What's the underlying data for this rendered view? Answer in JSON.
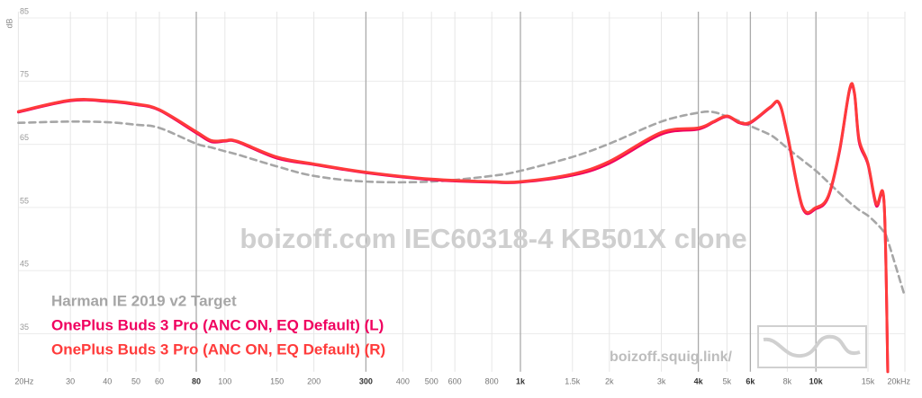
{
  "chart_data": {
    "type": "line",
    "watermark": "boizoff.com IEC60318-4 KB501X clone",
    "site": "boizoff.squig.link/",
    "y_label": "dB",
    "xscale": "log",
    "grid": true,
    "xlim": [
      20,
      20000
    ],
    "ylim": [
      29,
      86
    ],
    "yticks": [
      35,
      45,
      55,
      65,
      75,
      85
    ],
    "xticks": [
      {
        "value": 20,
        "label": "20Hz"
      },
      30,
      40,
      50,
      60,
      80,
      100,
      150,
      200,
      300,
      400,
      500,
      600,
      800,
      {
        "value": 1000,
        "label": "1k"
      },
      {
        "value": 1500,
        "label": "1.5k"
      },
      {
        "value": 2000,
        "label": "2k"
      },
      {
        "value": 3000,
        "label": "3k"
      },
      {
        "value": 4000,
        "label": "4k"
      },
      {
        "value": 5000,
        "label": "5k"
      },
      {
        "value": 6000,
        "label": "6k"
      },
      {
        "value": 8000,
        "label": "8k"
      },
      {
        "value": 10000,
        "label": "10k"
      },
      {
        "value": 15000,
        "label": "15k"
      },
      {
        "value": 20000,
        "label": "20kHz"
      }
    ],
    "xgrid_major": [
      80,
      300,
      1000,
      4000,
      6000,
      10000
    ],
    "x": [
      20,
      30,
      40,
      50,
      60,
      80,
      90,
      100,
      110,
      150,
      200,
      300,
      500,
      800,
      1000,
      1500,
      2000,
      3000,
      4000,
      4500,
      5000,
      5500,
      6000,
      7000,
      7500,
      8000,
      9000,
      10000,
      11000,
      12000,
      13000,
      13500,
      14000,
      15000,
      16000,
      17000,
      17500,
      20000
    ],
    "series": [
      {
        "name": "Harman IE 2019 v2 Target",
        "color": "#a6a6a6",
        "dashed": true,
        "values": [
          68.4,
          68.6,
          68.5,
          68.1,
          67.6,
          65.1,
          64.5,
          63.9,
          63.4,
          61.5,
          60.0,
          59.1,
          59.1,
          60.0,
          60.8,
          63.0,
          65.1,
          68.6,
          70.0,
          70.1,
          69.4,
          68.7,
          67.9,
          66.5,
          65.5,
          64.4,
          62.5,
          60.8,
          59.0,
          57.3,
          55.8,
          55.2,
          54.6,
          53.7,
          52.5,
          51.1,
          49.8,
          40.9
        ]
      },
      {
        "name": "OnePlus Buds 3 Pro (ANC ON, EQ Default) (L)",
        "color": "#f0005f",
        "dashed": false,
        "values": [
          70.1,
          71.9,
          71.8,
          71.3,
          70.4,
          66.8,
          65.4,
          65.5,
          65.4,
          62.8,
          61.8,
          60.5,
          59.4,
          59.0,
          59.0,
          60.1,
          62.0,
          66.6,
          67.4,
          68.5,
          69.4,
          68.4,
          68.4,
          70.8,
          71.5,
          66.5,
          55.0,
          54.8,
          56.6,
          63.7,
          73.6,
          73.0,
          65.4,
          61.8,
          55.3,
          55.8,
          29,
          null
        ]
      },
      {
        "name": "OnePlus Buds 3 Pro (ANC ON, EQ Default) (R)",
        "color": "#ff3b3b",
        "dashed": false,
        "values": [
          70.2,
          72.0,
          71.9,
          71.4,
          70.5,
          67.0,
          65.6,
          65.6,
          65.5,
          63.0,
          61.9,
          60.6,
          59.5,
          59.1,
          59.1,
          60.3,
          62.3,
          66.9,
          67.6,
          68.6,
          69.5,
          68.5,
          68.5,
          70.9,
          71.6,
          66.7,
          55.2,
          55.0,
          56.8,
          63.9,
          73.8,
          73.2,
          65.8,
          62.0,
          55.6,
          56.0,
          29,
          null
        ]
      }
    ]
  }
}
